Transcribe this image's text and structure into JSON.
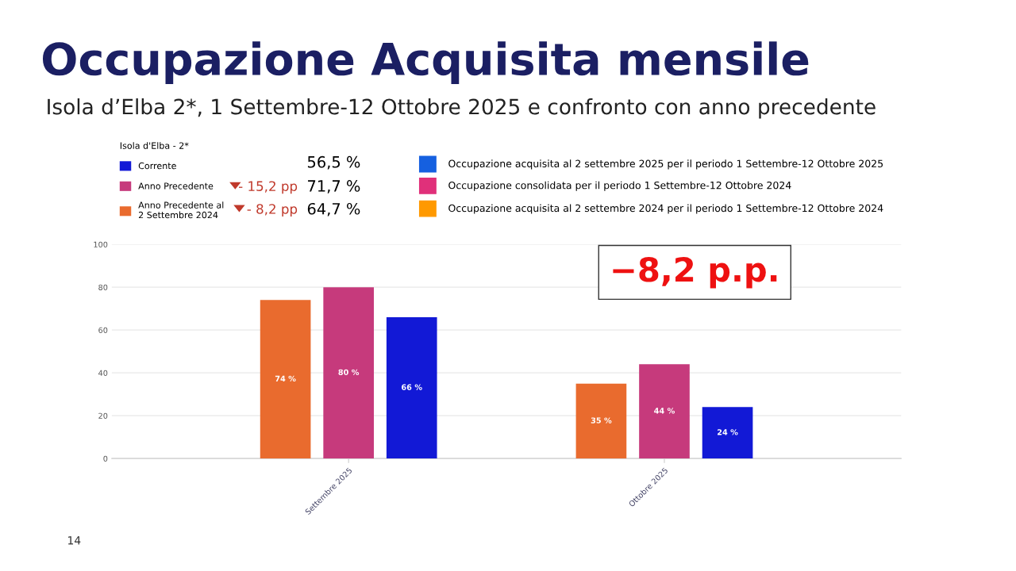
{
  "chart_data": {
    "type": "bar",
    "title": "Occupazione Acquisita mensile",
    "subtitle": "Isola d’Elba 2*, 1 Settembre-12 Ottobre 2025 e confronto con anno precedente",
    "legend_title": "Isola d'Elba - 2*",
    "categories": [
      "Settembre 2025",
      "Ottobre 2025"
    ],
    "series": [
      {
        "name": "Anno Precedente al\n2 Settembre 2024",
        "color": "#e96b2e",
        "values": [
          74,
          35
        ],
        "value_labels": [
          "74 %",
          "35 %"
        ]
      },
      {
        "name": "Anno Precedente",
        "color": "#c63a7c",
        "values": [
          80,
          44
        ],
        "value_labels": [
          "80 %",
          "44 %"
        ]
      },
      {
        "name": "Corrente",
        "color": "#1219d6",
        "values": [
          66,
          24
        ],
        "value_labels": [
          "66 %",
          "24 %"
        ]
      }
    ],
    "ylim": [
      0,
      100
    ],
    "yticks": [
      0,
      20,
      40,
      60,
      80,
      100
    ],
    "grid": "y",
    "legend": "top left",
    "annotations": [
      "56,5 %",
      "- 15,2 pp",
      "71,7 %",
      "- 8,2 pp",
      "64,7 %",
      "Occupazione acquisita al 2 settembre 2025 per il periodo 1 Settembre-12 Ottobre 2025",
      "Occupazione consolidata per il periodo 1 Settembre-12 Ottobre 2024",
      "Occupazione acquisita al 2 settembre 2024 per il periodo 1 Settembre-12 Ottobre 2024",
      "−8,2 p.p.",
      "14"
    ]
  }
}
